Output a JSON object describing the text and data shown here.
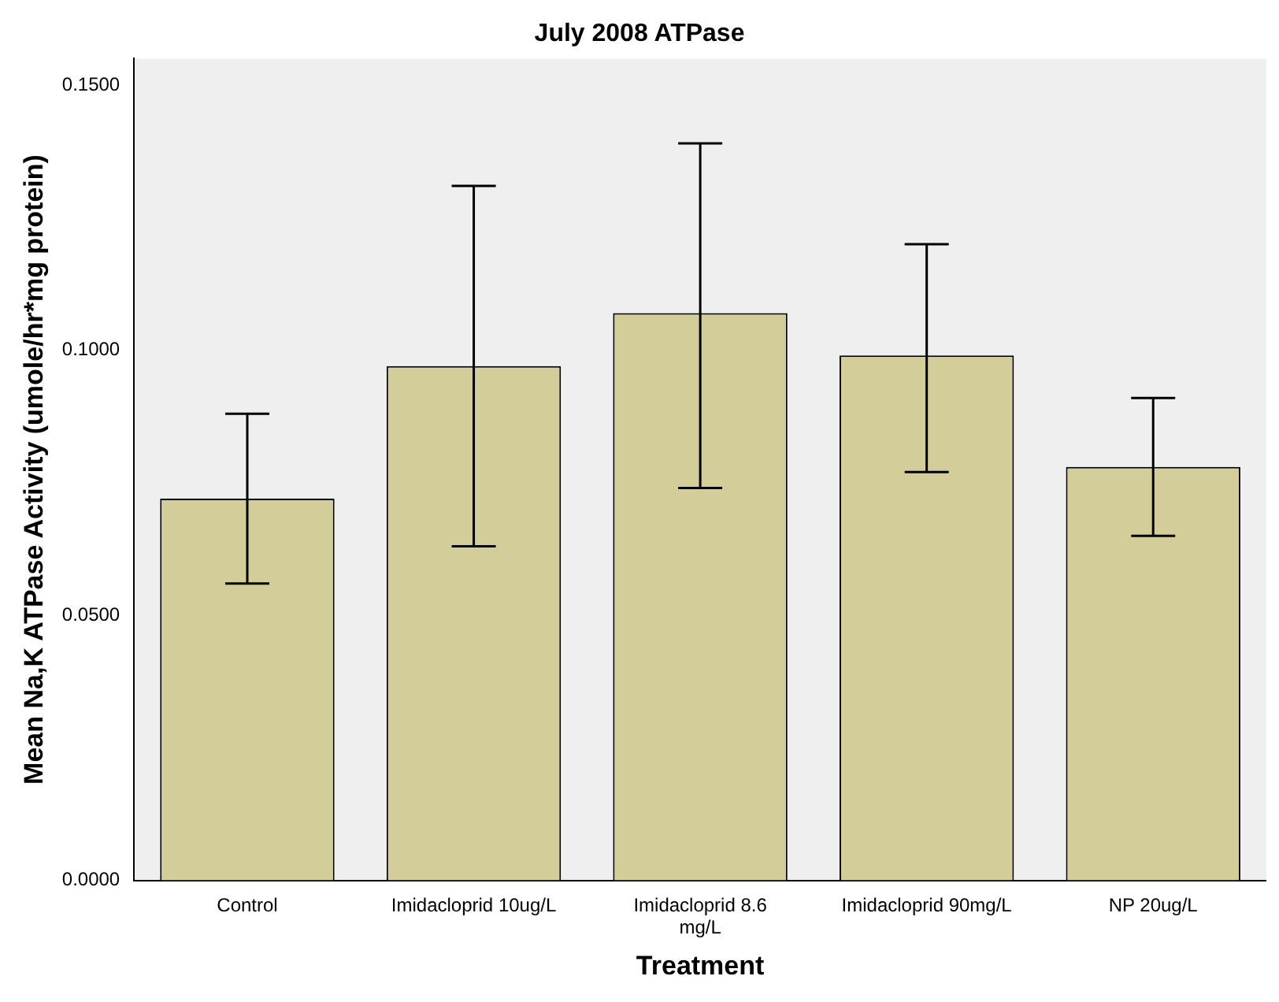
{
  "chart_data": {
    "type": "bar",
    "title": "July 2008 ATPase",
    "xlabel": "Treatment",
    "ylabel": "Mean Na,K ATPase Activity (umole/hr*mg protein)",
    "categories": [
      "Control",
      "Imidacloprid 10ug/L",
      "Imidacloprid 8.6 mg/L",
      "Imidacloprid 90mg/L",
      "NP 20ug/L"
    ],
    "values": [
      0.072,
      0.097,
      0.107,
      0.099,
      0.078
    ],
    "errors": [
      [
        0.056,
        0.088
      ],
      [
        0.063,
        0.131
      ],
      [
        0.074,
        0.139
      ],
      [
        0.077,
        0.12
      ],
      [
        0.065,
        0.091
      ]
    ],
    "color": "#d3ce99",
    "ylim": [
      0,
      0.155
    ],
    "yticks": [
      {
        "value": 0,
        "label": "0.0000"
      },
      {
        "value": 0.05,
        "label": "0.0500"
      },
      {
        "value": 0.1,
        "label": "0.1000"
      },
      {
        "value": 0.15,
        "label": "0.1500"
      }
    ],
    "grid": false,
    "legend": false
  }
}
